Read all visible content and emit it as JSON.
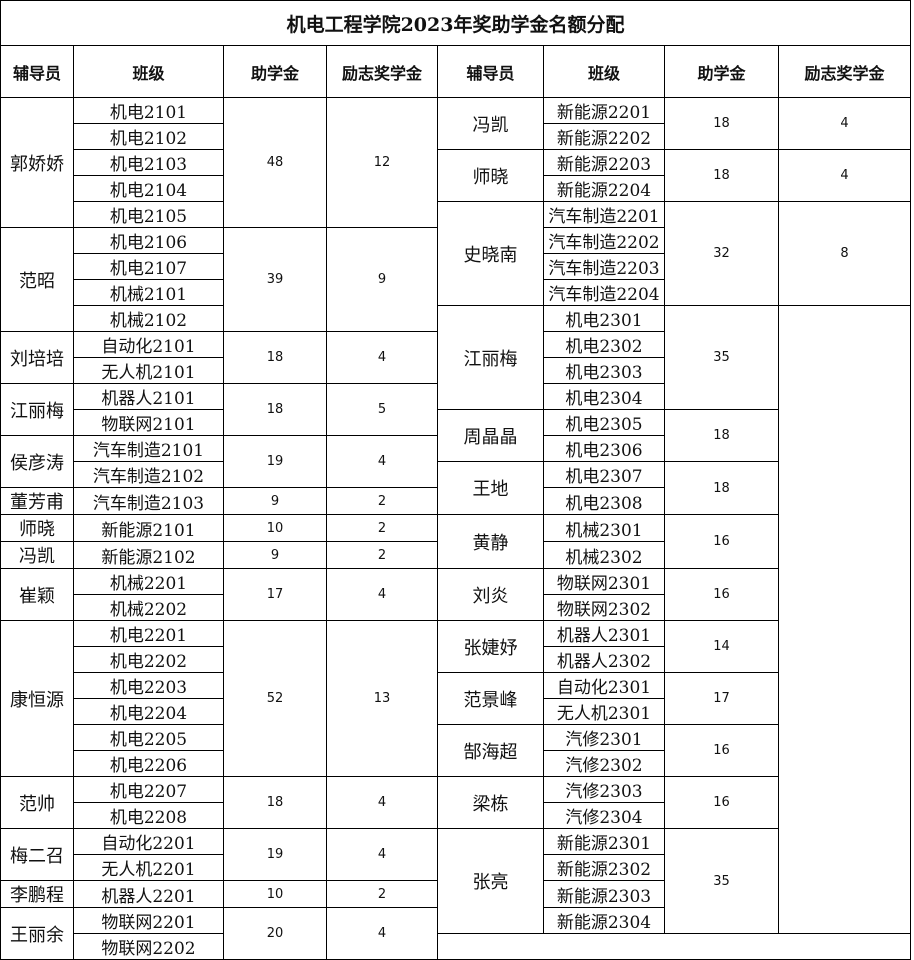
{
  "title": "机电工程学院2023年奖助学金名额分配",
  "headers": [
    "辅导员",
    "班级",
    "助学金",
    "励志奖学金",
    "辅导员",
    "班级",
    "助学金",
    "励志奖学金"
  ],
  "left_groups": [
    {
      "counselor": "郭娇娇",
      "classes": [
        "机电2101",
        "机电2102",
        "机电2103",
        "机电2104",
        "机电2105"
      ],
      "grant": "48",
      "scholarship": "12"
    },
    {
      "counselor": "范昭",
      "classes": [
        "机电2106",
        "机电2107",
        "机械2101",
        "机械2102"
      ],
      "grant": "39",
      "scholarship": "9"
    },
    {
      "counselor": "刘培培",
      "classes": [
        "自动化2101",
        "无人机2101"
      ],
      "grant": "18",
      "scholarship": "4"
    },
    {
      "counselor": "江丽梅",
      "classes": [
        "机器人2101",
        "物联网2101"
      ],
      "grant": "18",
      "scholarship": "5"
    },
    {
      "counselor": "侯彦涛",
      "classes": [
        "汽车制造2101",
        "汽车制造2102"
      ],
      "grant": "19",
      "scholarship": "4"
    },
    {
      "counselor": "董芳甫",
      "classes": [
        "汽车制造2103"
      ],
      "grant": "9",
      "scholarship": "2"
    },
    {
      "counselor": "师晓",
      "classes": [
        "新能源2101"
      ],
      "grant": "10",
      "scholarship": "2"
    },
    {
      "counselor": "冯凯",
      "classes": [
        "新能源2102"
      ],
      "grant": "9",
      "scholarship": "2"
    },
    {
      "counselor": "崔颖",
      "classes": [
        "机械2201",
        "机械2202"
      ],
      "grant": "17",
      "scholarship": "4"
    },
    {
      "counselor": "康恒源",
      "classes": [
        "机电2201",
        "机电2202",
        "机电2203",
        "机电2204",
        "机电2205",
        "机电2206"
      ],
      "grant": "52",
      "scholarship": "13"
    },
    {
      "counselor": "范帅",
      "classes": [
        "机电2207",
        "机电2208"
      ],
      "grant": "18",
      "scholarship": "4"
    },
    {
      "counselor": "梅二召",
      "classes": [
        "自动化2201",
        "无人机2201"
      ],
      "grant": "19",
      "scholarship": "4"
    },
    {
      "counselor": "李鹏程",
      "classes": [
        "机器人2201"
      ],
      "grant": "10",
      "scholarship": "2"
    },
    {
      "counselor": "王丽余",
      "classes": [
        "物联网2201",
        "物联网2202"
      ],
      "grant": "20",
      "scholarship": "4"
    }
  ],
  "right_groups": [
    {
      "counselor": "冯凯",
      "classes": [
        "新能源2201",
        "新能源2202"
      ],
      "grant": "18",
      "scholarship": "4"
    },
    {
      "counselor": "师晓",
      "classes": [
        "新能源2203",
        "新能源2204"
      ],
      "grant": "18",
      "scholarship": "4"
    },
    {
      "counselor": "史晓南",
      "classes": [
        "汽车制造2201",
        "汽车制造2202",
        "汽车制造2203",
        "汽车制造2204"
      ],
      "grant": "32",
      "scholarship": "8"
    },
    {
      "counselor": "江丽梅",
      "classes": [
        "机电2301",
        "机电2302",
        "机电2303",
        "机电2304"
      ],
      "grant": "35"
    },
    {
      "counselor": "周晶晶",
      "classes": [
        "机电2305",
        "机电2306"
      ],
      "grant": "18"
    },
    {
      "counselor": "王地",
      "classes": [
        "机电2307",
        "机电2308"
      ],
      "grant": "18"
    },
    {
      "counselor": "黄静",
      "classes": [
        "机械2301",
        "机械2302"
      ],
      "grant": "16"
    },
    {
      "counselor": "刘炎",
      "classes": [
        "物联网2301",
        "物联网2302"
      ],
      "grant": "16"
    },
    {
      "counselor": "张婕妤",
      "classes": [
        "机器人2301",
        "机器人2302"
      ],
      "grant": "14"
    },
    {
      "counselor": "范景峰",
      "classes": [
        "自动化2301",
        "无人机2301"
      ],
      "grant": "17"
    },
    {
      "counselor": "郜海超",
      "classes": [
        "汽修2301",
        "汽修2302"
      ],
      "grant": "16"
    },
    {
      "counselor": "梁栋",
      "classes": [
        "汽修2303",
        "汽修2304"
      ],
      "grant": "16"
    },
    {
      "counselor": "张亮",
      "classes": [
        "新能源2301",
        "新能源2302",
        "新能源2303",
        "新能源2304"
      ],
      "grant": "35"
    }
  ]
}
